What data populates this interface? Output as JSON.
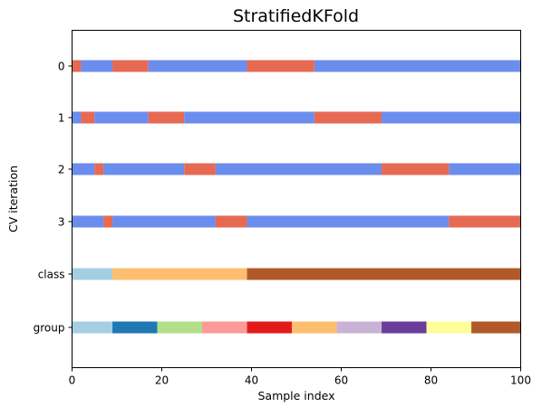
{
  "chart_data": {
    "type": "bar",
    "title": "StratifiedKFold",
    "xlabel": "Sample index",
    "ylabel": "CV iteration",
    "xlim": [
      0,
      100
    ],
    "x_ticks": [
      "0",
      "20",
      "40",
      "60",
      "80",
      "100"
    ],
    "x_tick_values": [
      0,
      20,
      40,
      60,
      80,
      100
    ],
    "grid": false,
    "legend": "none",
    "rows": [
      {
        "label": "0",
        "segments": [
          {
            "start": 0,
            "end": 2,
            "color": "#e66a52"
          },
          {
            "start": 2,
            "end": 9,
            "color": "#6b8ded"
          },
          {
            "start": 9,
            "end": 17,
            "color": "#e66a52"
          },
          {
            "start": 17,
            "end": 39,
            "color": "#6b8ded"
          },
          {
            "start": 39,
            "end": 54,
            "color": "#e66a52"
          },
          {
            "start": 54,
            "end": 100,
            "color": "#6b8ded"
          }
        ]
      },
      {
        "label": "1",
        "segments": [
          {
            "start": 0,
            "end": 2,
            "color": "#6b8ded"
          },
          {
            "start": 2,
            "end": 5,
            "color": "#e66a52"
          },
          {
            "start": 5,
            "end": 17,
            "color": "#6b8ded"
          },
          {
            "start": 17,
            "end": 25,
            "color": "#e66a52"
          },
          {
            "start": 25,
            "end": 54,
            "color": "#6b8ded"
          },
          {
            "start": 54,
            "end": 69,
            "color": "#e66a52"
          },
          {
            "start": 69,
            "end": 100,
            "color": "#6b8ded"
          }
        ]
      },
      {
        "label": "2",
        "segments": [
          {
            "start": 0,
            "end": 5,
            "color": "#6b8ded"
          },
          {
            "start": 5,
            "end": 7,
            "color": "#e66a52"
          },
          {
            "start": 7,
            "end": 25,
            "color": "#6b8ded"
          },
          {
            "start": 25,
            "end": 32,
            "color": "#e66a52"
          },
          {
            "start": 32,
            "end": 69,
            "color": "#6b8ded"
          },
          {
            "start": 69,
            "end": 84,
            "color": "#e66a52"
          },
          {
            "start": 84,
            "end": 100,
            "color": "#6b8ded"
          }
        ]
      },
      {
        "label": "3",
        "segments": [
          {
            "start": 0,
            "end": 7,
            "color": "#6b8ded"
          },
          {
            "start": 7,
            "end": 9,
            "color": "#e66a52"
          },
          {
            "start": 9,
            "end": 32,
            "color": "#6b8ded"
          },
          {
            "start": 32,
            "end": 39,
            "color": "#e66a52"
          },
          {
            "start": 39,
            "end": 84,
            "color": "#6b8ded"
          },
          {
            "start": 84,
            "end": 100,
            "color": "#e66a52"
          }
        ]
      },
      {
        "label": "class",
        "segments": [
          {
            "start": 0,
            "end": 9,
            "color": "#a6cee3"
          },
          {
            "start": 9,
            "end": 39,
            "color": "#fdbf6f"
          },
          {
            "start": 39,
            "end": 100,
            "color": "#b15928"
          }
        ]
      },
      {
        "label": "group",
        "segments": [
          {
            "start": 0,
            "end": 9,
            "color": "#a6cee3"
          },
          {
            "start": 9,
            "end": 19,
            "color": "#1f78b4"
          },
          {
            "start": 19,
            "end": 29,
            "color": "#b2df8a"
          },
          {
            "start": 29,
            "end": 39,
            "color": "#fb9a99"
          },
          {
            "start": 39,
            "end": 49,
            "color": "#e31a1c"
          },
          {
            "start": 49,
            "end": 59,
            "color": "#fdbf6f"
          },
          {
            "start": 59,
            "end": 69,
            "color": "#cab2d6"
          },
          {
            "start": 69,
            "end": 79,
            "color": "#6a3d9a"
          },
          {
            "start": 79,
            "end": 89,
            "color": "#ffff99"
          },
          {
            "start": 89,
            "end": 100,
            "color": "#b15928"
          }
        ]
      }
    ]
  }
}
